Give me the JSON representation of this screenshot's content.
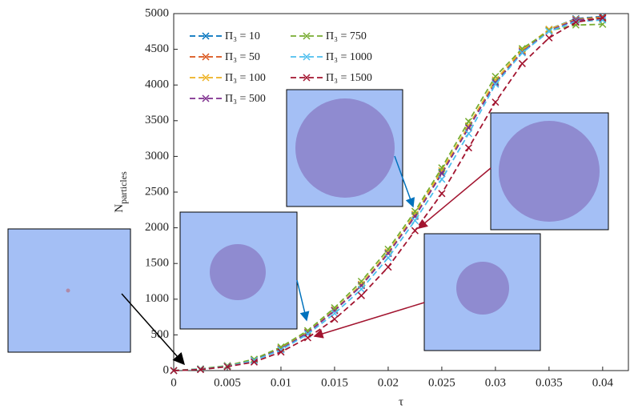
{
  "chart_data": {
    "type": "line",
    "xlabel": "τ",
    "ylabel": "N",
    "ylabel_sub": "particles",
    "x": [
      0,
      0.0025,
      0.005,
      0.0075,
      0.01,
      0.0125,
      0.015,
      0.0175,
      0.02,
      0.0225,
      0.025,
      0.0275,
      0.03,
      0.0325,
      0.035,
      0.0375,
      0.04
    ],
    "xlim": [
      0,
      0.0424
    ],
    "xticks": [
      0,
      0.005,
      0.01,
      0.015,
      0.02,
      0.025,
      0.03,
      0.035,
      0.04
    ],
    "ylim": [
      0,
      5000
    ],
    "yticks": [
      0,
      500,
      1000,
      1500,
      2000,
      2500,
      3000,
      3500,
      4000,
      4500,
      5000
    ],
    "series": [
      {
        "name": "Π₃ = 10",
        "color": "#0072bd",
        "values": [
          0,
          20,
          65,
          150,
          310,
          540,
          850,
          1200,
          1650,
          2180,
          2780,
          3420,
          4050,
          4480,
          4780,
          4930,
          4960
        ]
      },
      {
        "name": "Π₃ = 50",
        "color": "#d95319",
        "values": [
          0,
          20,
          65,
          150,
          310,
          530,
          840,
          1190,
          1640,
          2160,
          2760,
          3400,
          4030,
          4470,
          4770,
          4920,
          4950
        ]
      },
      {
        "name": "Π₃ = 100",
        "color": "#edb120",
        "values": [
          0,
          20,
          65,
          150,
          310,
          540,
          850,
          1210,
          1660,
          2190,
          2800,
          3430,
          4070,
          4490,
          4780,
          4920,
          4940
        ]
      },
      {
        "name": "Π₃ = 500",
        "color": "#7e2f8e",
        "values": [
          0,
          20,
          65,
          150,
          300,
          530,
          840,
          1190,
          1640,
          2160,
          2760,
          3400,
          4030,
          4460,
          4760,
          4910,
          4930
        ]
      },
      {
        "name": "Π₃ = 750",
        "color": "#77ac30",
        "values": [
          0,
          25,
          70,
          160,
          330,
          560,
          880,
          1250,
          1700,
          2230,
          2840,
          3490,
          4120,
          4510,
          4760,
          4840,
          4850
        ]
      },
      {
        "name": "Π₃ = 1000",
        "color": "#4dbeee",
        "values": [
          0,
          20,
          60,
          140,
          290,
          510,
          800,
          1140,
          1580,
          2100,
          2680,
          3320,
          4010,
          4450,
          4750,
          4890,
          4910
        ]
      },
      {
        "name": "Π₃ = 1500",
        "color": "#a2142f",
        "values": [
          0,
          15,
          55,
          120,
          260,
          460,
          720,
          1050,
          1450,
          1960,
          2480,
          3120,
          3760,
          4300,
          4660,
          4880,
          4940
        ]
      }
    ]
  }
}
